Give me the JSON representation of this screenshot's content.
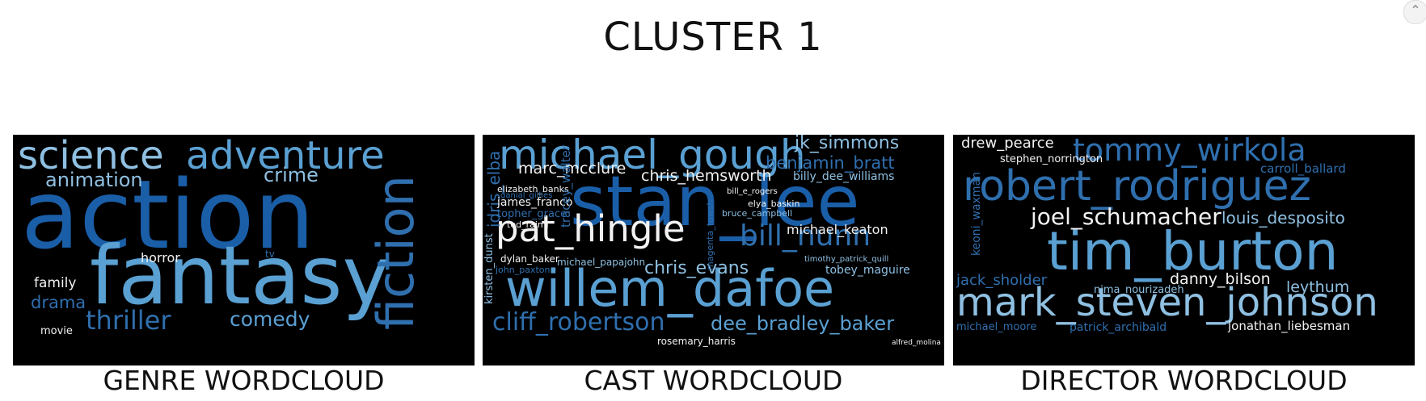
{
  "title": "CLUSTER 1",
  "captions": {
    "genre": "GENRE WORDCLOUD",
    "cast": "CAST WORDCLOUD",
    "director": "DIRECTOR WORDCLOUD"
  },
  "colors": {
    "background": "#000000",
    "blue_dark": "#1a5ea8",
    "blue_mid": "#2f6fae",
    "blue_light": "#5aa0d2",
    "blue_pale": "#8fc0e2",
    "white": "#f2f2f2"
  },
  "genre_words": [
    "action",
    "fantasy",
    "science",
    "adventure",
    "fiction",
    "animation",
    "crime",
    "thriller",
    "comedy",
    "drama",
    "horror",
    "family",
    "tv",
    "movie"
  ],
  "cast_words": [
    "stan_lee",
    "willem_dafoe",
    "michael_gough",
    "pat_hingle",
    "bill_nunn",
    "cliff_robertson",
    "dee_bradley_baker",
    "chris_hemsworth",
    "jk_simmons",
    "benjamin_bratt",
    "marc_mcclure",
    "chris_evans",
    "michael_keaton",
    "idris_elba",
    "billy_dee_williams",
    "tobey_maguire",
    "james_franco",
    "topher_grace",
    "elizabeth_banks",
    "tracey_walter",
    "danial_gillies",
    "kirsten_dunst",
    "ted_raimi",
    "dylan_baker",
    "michael_papajohn",
    "rosemary_harris",
    "bruce_campbell",
    "elya_baskin",
    "bill_e_rogers",
    "magenta_towsh",
    "timothy_patrick_quill",
    "john_paxton",
    "alfred_molina"
  ],
  "director_words": [
    "tim_burton",
    "mark_steven_johnson",
    "robert_rodriguez",
    "tommy_wirkola",
    "joel_schumacher",
    "louis_desposito",
    "drew_pearce",
    "stephen_norrington",
    "carroll_ballard",
    "keoni_waxman",
    "jack_sholder",
    "danny_bilson",
    "leythum",
    "nima_nourizadeh",
    "michael_moore",
    "patrick_archibald",
    "jonathan_liebesman"
  ]
}
